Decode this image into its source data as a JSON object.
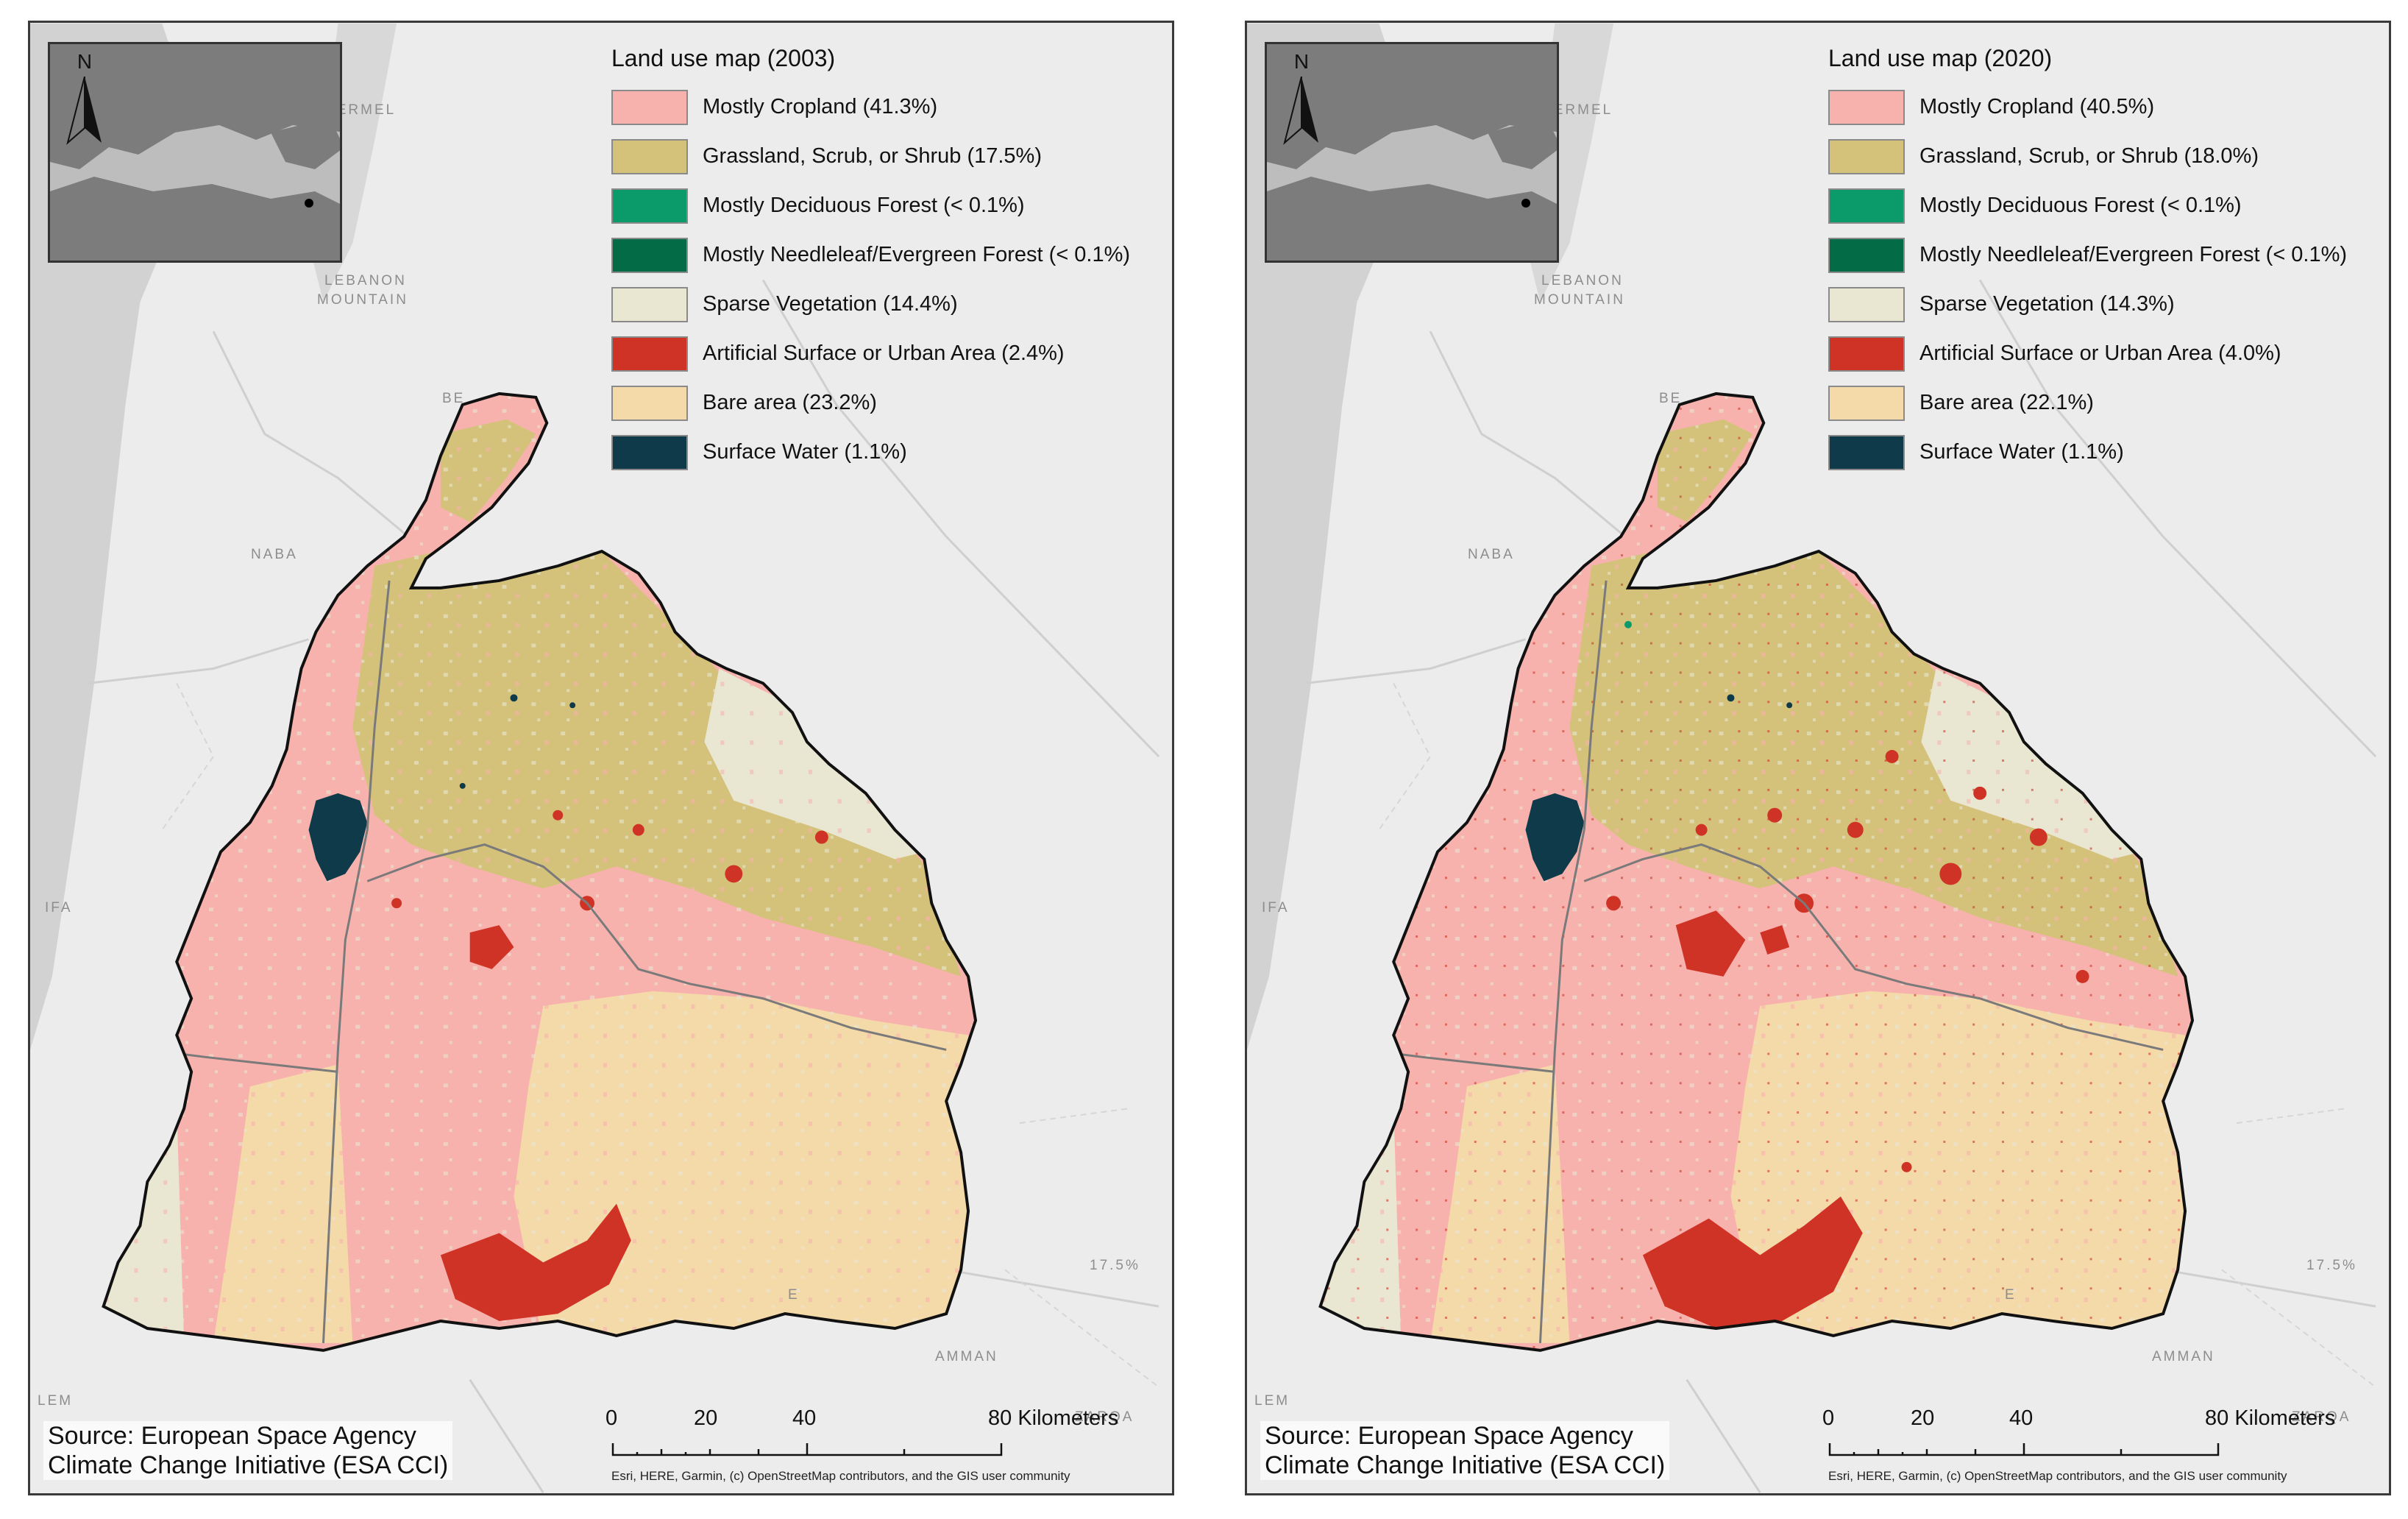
{
  "maps": [
    {
      "legend_title": "Land use map (2003)",
      "legend": [
        {
          "label": "Mostly Cropland (41.3%)",
          "color": "#f8b2ae"
        },
        {
          "label": "Grassland, Scrub, or Shrub (17.5%)",
          "color": "#d4c27a"
        },
        {
          "label": "Mostly Deciduous Forest (< 0.1%)",
          "color": "#0b9b6b"
        },
        {
          "label": "Mostly Needleleaf/Evergreen Forest (< 0.1%)",
          "color": "#046b47"
        },
        {
          "label": "Sparse Vegetation (14.4%)",
          "color": "#e9e6d2"
        },
        {
          "label": "Artificial Surface or Urban Area (2.4%)",
          "color": "#cf3326"
        },
        {
          "label": "Bare area (23.2%)",
          "color": "#f4d9a9"
        },
        {
          "label": "Surface Water (1.1%)",
          "color": "#0e3a4a"
        }
      ],
      "source": [
        "Source: European Space Agency",
        "Climate Change Initiative (ESA CCI)"
      ],
      "scale": {
        "ticks": [
          "0",
          "20",
          "40",
          "80 Kilometers"
        ]
      },
      "attribution": "Esri, HERE, Garmin, (c) OpenStreetMap contributors, and the GIS user community",
      "north": "N",
      "places": [
        "HERMEL",
        "LEBANON",
        "MOUNTAIN",
        "NABA",
        "BE",
        "IFA",
        "LEM",
        "AMMAN",
        "ZARQA",
        "17.5%",
        "E"
      ]
    },
    {
      "legend_title": "Land use map (2020)",
      "legend": [
        {
          "label": "Mostly Cropland (40.5%)",
          "color": "#f8b2ae"
        },
        {
          "label": "Grassland, Scrub, or Shrub (18.0%)",
          "color": "#d4c27a"
        },
        {
          "label": "Mostly Deciduous Forest (< 0.1%)",
          "color": "#0b9b6b"
        },
        {
          "label": "Mostly Needleleaf/Evergreen Forest (< 0.1%)",
          "color": "#046b47"
        },
        {
          "label": "Sparse Vegetation (14.3%)",
          "color": "#e9e6d2"
        },
        {
          "label": "Artificial Surface or Urban Area (4.0%)",
          "color": "#cf3326"
        },
        {
          "label": "Bare area (22.1%)",
          "color": "#f4d9a9"
        },
        {
          "label": "Surface Water (1.1%)",
          "color": "#0e3a4a"
        }
      ],
      "source": [
        "Source: European Space Agency",
        "Climate Change Initiative (ESA CCI)"
      ],
      "scale": {
        "ticks": [
          "0",
          "20",
          "40",
          "80 Kilometers"
        ]
      },
      "attribution": "Esri, HERE, Garmin, (c) OpenStreetMap contributors, and the GIS user community",
      "north": "N",
      "places": [
        "HERMEL",
        "LEBANON",
        "MOUNTAIN",
        "NABA",
        "BE",
        "IFA",
        "LEM",
        "AMMAN",
        "ZARQA",
        "17.5%",
        "E"
      ]
    }
  ]
}
